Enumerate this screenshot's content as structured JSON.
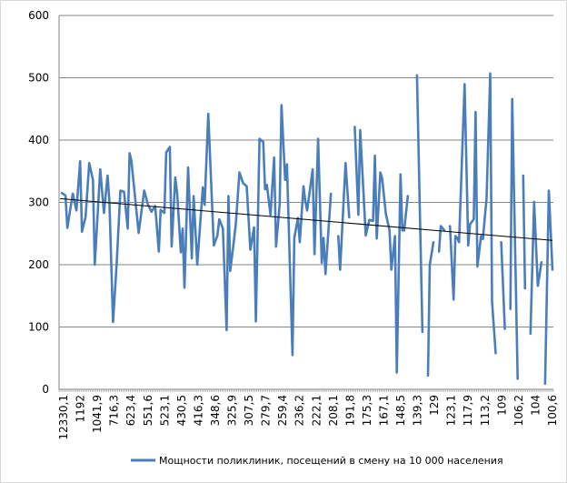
{
  "chart_data": {
    "type": "line",
    "title": "",
    "xlabel": "",
    "ylabel": "",
    "ylim": [
      0,
      600
    ],
    "yticks": [
      0,
      100,
      200,
      300,
      400,
      500,
      600
    ],
    "n_categories": 270,
    "x_tick_labels": [
      "12330,1",
      "1192",
      "1041,9",
      "716,3",
      "623,4",
      "551,6",
      "523,1",
      "430,5",
      "416,3",
      "348,6",
      "325,9",
      "307,5",
      "279,7",
      "259,4",
      "236,2",
      "222,1",
      "208,1",
      "191,8",
      "175,3",
      "167,1",
      "148,5",
      "139,3",
      "129",
      "123,1",
      "117,9",
      "113,2",
      "109",
      "106,2",
      "104",
      "100,6"
    ],
    "grid": "horizontal",
    "legend_position": "bottom",
    "series": [
      {
        "name": "Мощности поликлиник, посещений в смену на 10 000 населения",
        "color": "#4a7ebb",
        "segments": [
          [
            [
              1,
              315
            ],
            [
              3,
              311
            ],
            [
              4,
              259
            ],
            [
              7,
              314
            ],
            [
              9,
              287
            ],
            [
              11,
              366
            ],
            [
              12,
              253
            ],
            [
              14,
              277
            ],
            [
              16,
              363
            ],
            [
              18,
              336
            ],
            [
              19,
              200
            ],
            [
              22,
              353
            ],
            [
              24,
              283
            ],
            [
              26,
              343
            ],
            [
              27,
              302
            ],
            [
              29,
              108
            ],
            [
              31,
              204
            ],
            [
              33,
              319
            ],
            [
              35,
              317
            ],
            [
              37,
              258
            ],
            [
              38,
              379
            ],
            [
              39,
              367
            ],
            [
              43,
              251
            ],
            [
              46,
              319
            ],
            [
              48,
              297
            ],
            [
              50,
              285
            ],
            [
              52,
              294
            ],
            [
              54,
              221
            ],
            [
              55,
              288
            ],
            [
              57,
              283
            ],
            [
              58,
              380
            ],
            [
              60,
              389
            ],
            [
              61,
              229
            ],
            [
              63,
              340
            ],
            [
              64,
              314
            ],
            [
              66,
              220
            ],
            [
              67,
              258
            ],
            [
              68,
              163
            ],
            [
              70,
              356
            ],
            [
              72,
              210
            ],
            [
              73,
              310
            ],
            [
              75,
              200
            ],
            [
              78,
              324
            ],
            [
              79,
              296
            ],
            [
              81,
              442
            ],
            [
              84,
              231
            ],
            [
              86,
              247
            ],
            [
              87,
              273
            ],
            [
              89,
              258
            ],
            [
              91,
              95
            ],
            [
              92,
              310
            ],
            [
              93,
              190
            ],
            [
              96,
              263
            ],
            [
              98,
              348
            ],
            [
              100,
              331
            ],
            [
              102,
              326
            ],
            [
              104,
              224
            ],
            [
              106,
              260
            ],
            [
              107,
              109
            ],
            [
              109,
              402
            ],
            [
              111,
              397
            ],
            [
              112,
              321
            ],
            [
              113,
              328
            ],
            [
              115,
              280
            ],
            [
              117,
              372
            ],
            [
              118,
              229
            ],
            [
              120,
              297
            ],
            [
              121,
              456
            ],
            [
              123,
              336
            ],
            [
              124,
              361
            ],
            [
              127,
              55
            ],
            [
              128,
              243
            ],
            [
              130,
              275
            ],
            [
              131,
              236
            ],
            [
              133,
              326
            ],
            [
              134,
              302
            ],
            [
              135,
              287
            ],
            [
              138,
              353
            ],
            [
              139,
              217
            ],
            [
              141,
              402
            ],
            [
              143,
              203
            ],
            [
              144,
              243
            ],
            [
              145,
              185
            ],
            [
              148,
              314
            ]
          ],
          [
            [
              152,
              246
            ],
            [
              153,
              192
            ],
            [
              156,
              363
            ],
            [
              158,
              276
            ]
          ],
          [
            [
              161,
              421
            ],
            [
              163,
              280
            ],
            [
              164,
              416
            ],
            [
              167,
              247
            ],
            [
              169,
              272
            ],
            [
              171,
              270
            ],
            [
              172,
              375
            ],
            [
              173,
              242
            ],
            [
              175,
              348
            ],
            [
              176,
              338
            ],
            [
              178,
              282
            ],
            [
              180,
              255
            ],
            [
              181,
              192
            ],
            [
              183,
              246
            ],
            [
              184,
              27
            ],
            [
              186,
              345
            ],
            [
              187,
              255
            ],
            [
              188,
              255
            ],
            [
              190,
              310
            ]
          ],
          [
            [
              195,
              504
            ],
            [
              198,
              92
            ]
          ],
          [
            [
              201,
              22
            ],
            [
              202,
              200
            ],
            [
              204,
              236
            ]
          ],
          [
            [
              207,
              221
            ],
            [
              208,
              262
            ],
            [
              210,
              255
            ]
          ],
          [
            [
              213,
              262
            ],
            [
              215,
              144
            ],
            [
              216,
              246
            ],
            [
              217,
              243
            ],
            [
              218,
              236
            ],
            [
              221,
              490
            ],
            [
              223,
              231
            ],
            [
              224,
              265
            ],
            [
              226,
              273
            ],
            [
              227,
              445
            ],
            [
              228,
              197
            ],
            [
              230,
              246
            ],
            [
              231,
              241
            ],
            [
              233,
              307
            ],
            [
              235,
              507
            ],
            [
              236,
              141
            ],
            [
              238,
              58
            ]
          ],
          [
            [
              241,
              236
            ],
            [
              243,
              97
            ]
          ],
          [
            [
              246,
              129
            ],
            [
              247,
              466
            ],
            [
              250,
              17
            ]
          ],
          [
            [
              253,
              343
            ],
            [
              254,
              162
            ]
          ],
          [
            [
              257,
              89
            ],
            [
              259,
              301
            ],
            [
              261,
              166
            ],
            [
              263,
              204
            ]
          ],
          [
            [
              265,
              9
            ],
            [
              267,
              319
            ],
            [
              269,
              192
            ]
          ]
        ]
      }
    ],
    "trendline": {
      "type": "linear",
      "start": [
        0,
        306
      ],
      "end": [
        269,
        239
      ],
      "color": "#000000"
    }
  }
}
